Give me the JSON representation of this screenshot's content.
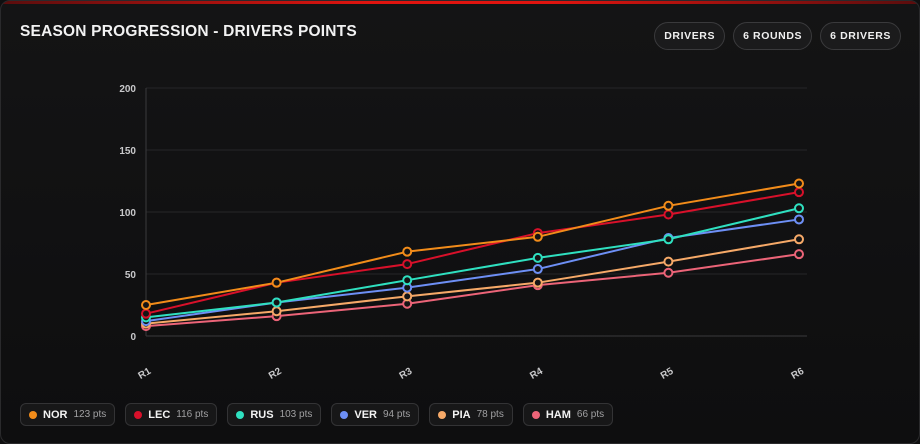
{
  "title": "SEASON PROGRESSION - DRIVERS POINTS",
  "pills": [
    "DRIVERS",
    "6 ROUNDS",
    "6 DRIVERS"
  ],
  "chart_data": {
    "type": "line",
    "title": "SEASON PROGRESSION - DRIVERS POINTS",
    "xlabel": "",
    "ylabel": "",
    "categories": [
      "R1",
      "R2",
      "R3",
      "R4",
      "R5",
      "R6"
    ],
    "ylim": [
      0,
      200
    ],
    "yticks": [
      0,
      50,
      100,
      150,
      200
    ],
    "grid": true,
    "legend": "bottom",
    "series": [
      {
        "name": "NOR",
        "color": "#f28c1a",
        "values": [
          25,
          43,
          68,
          80,
          105,
          123
        ]
      },
      {
        "name": "LEC",
        "color": "#d8102a",
        "values": [
          18,
          43,
          58,
          83,
          98,
          116
        ]
      },
      {
        "name": "RUS",
        "color": "#2fe0c0",
        "values": [
          15,
          27,
          45,
          63,
          78,
          103
        ]
      },
      {
        "name": "VER",
        "color": "#6d8ff5",
        "values": [
          12,
          27,
          39,
          54,
          79,
          94
        ]
      },
      {
        "name": "PIA",
        "color": "#f6a968",
        "values": [
          10,
          20,
          32,
          43,
          60,
          78
        ]
      },
      {
        "name": "HAM",
        "color": "#ec6478",
        "values": [
          8,
          16,
          26,
          41,
          51,
          66
        ]
      }
    ]
  },
  "legend": [
    {
      "code": "NOR",
      "pts": "123 pts",
      "color": "#f28c1a"
    },
    {
      "code": "LEC",
      "pts": "116 pts",
      "color": "#d8102a"
    },
    {
      "code": "RUS",
      "pts": "103 pts",
      "color": "#2fe0c0"
    },
    {
      "code": "VER",
      "pts": "94 pts",
      "color": "#6d8ff5"
    },
    {
      "code": "PIA",
      "pts": "78 pts",
      "color": "#f6a968"
    },
    {
      "code": "HAM",
      "pts": "66 pts",
      "color": "#ec6478"
    }
  ]
}
